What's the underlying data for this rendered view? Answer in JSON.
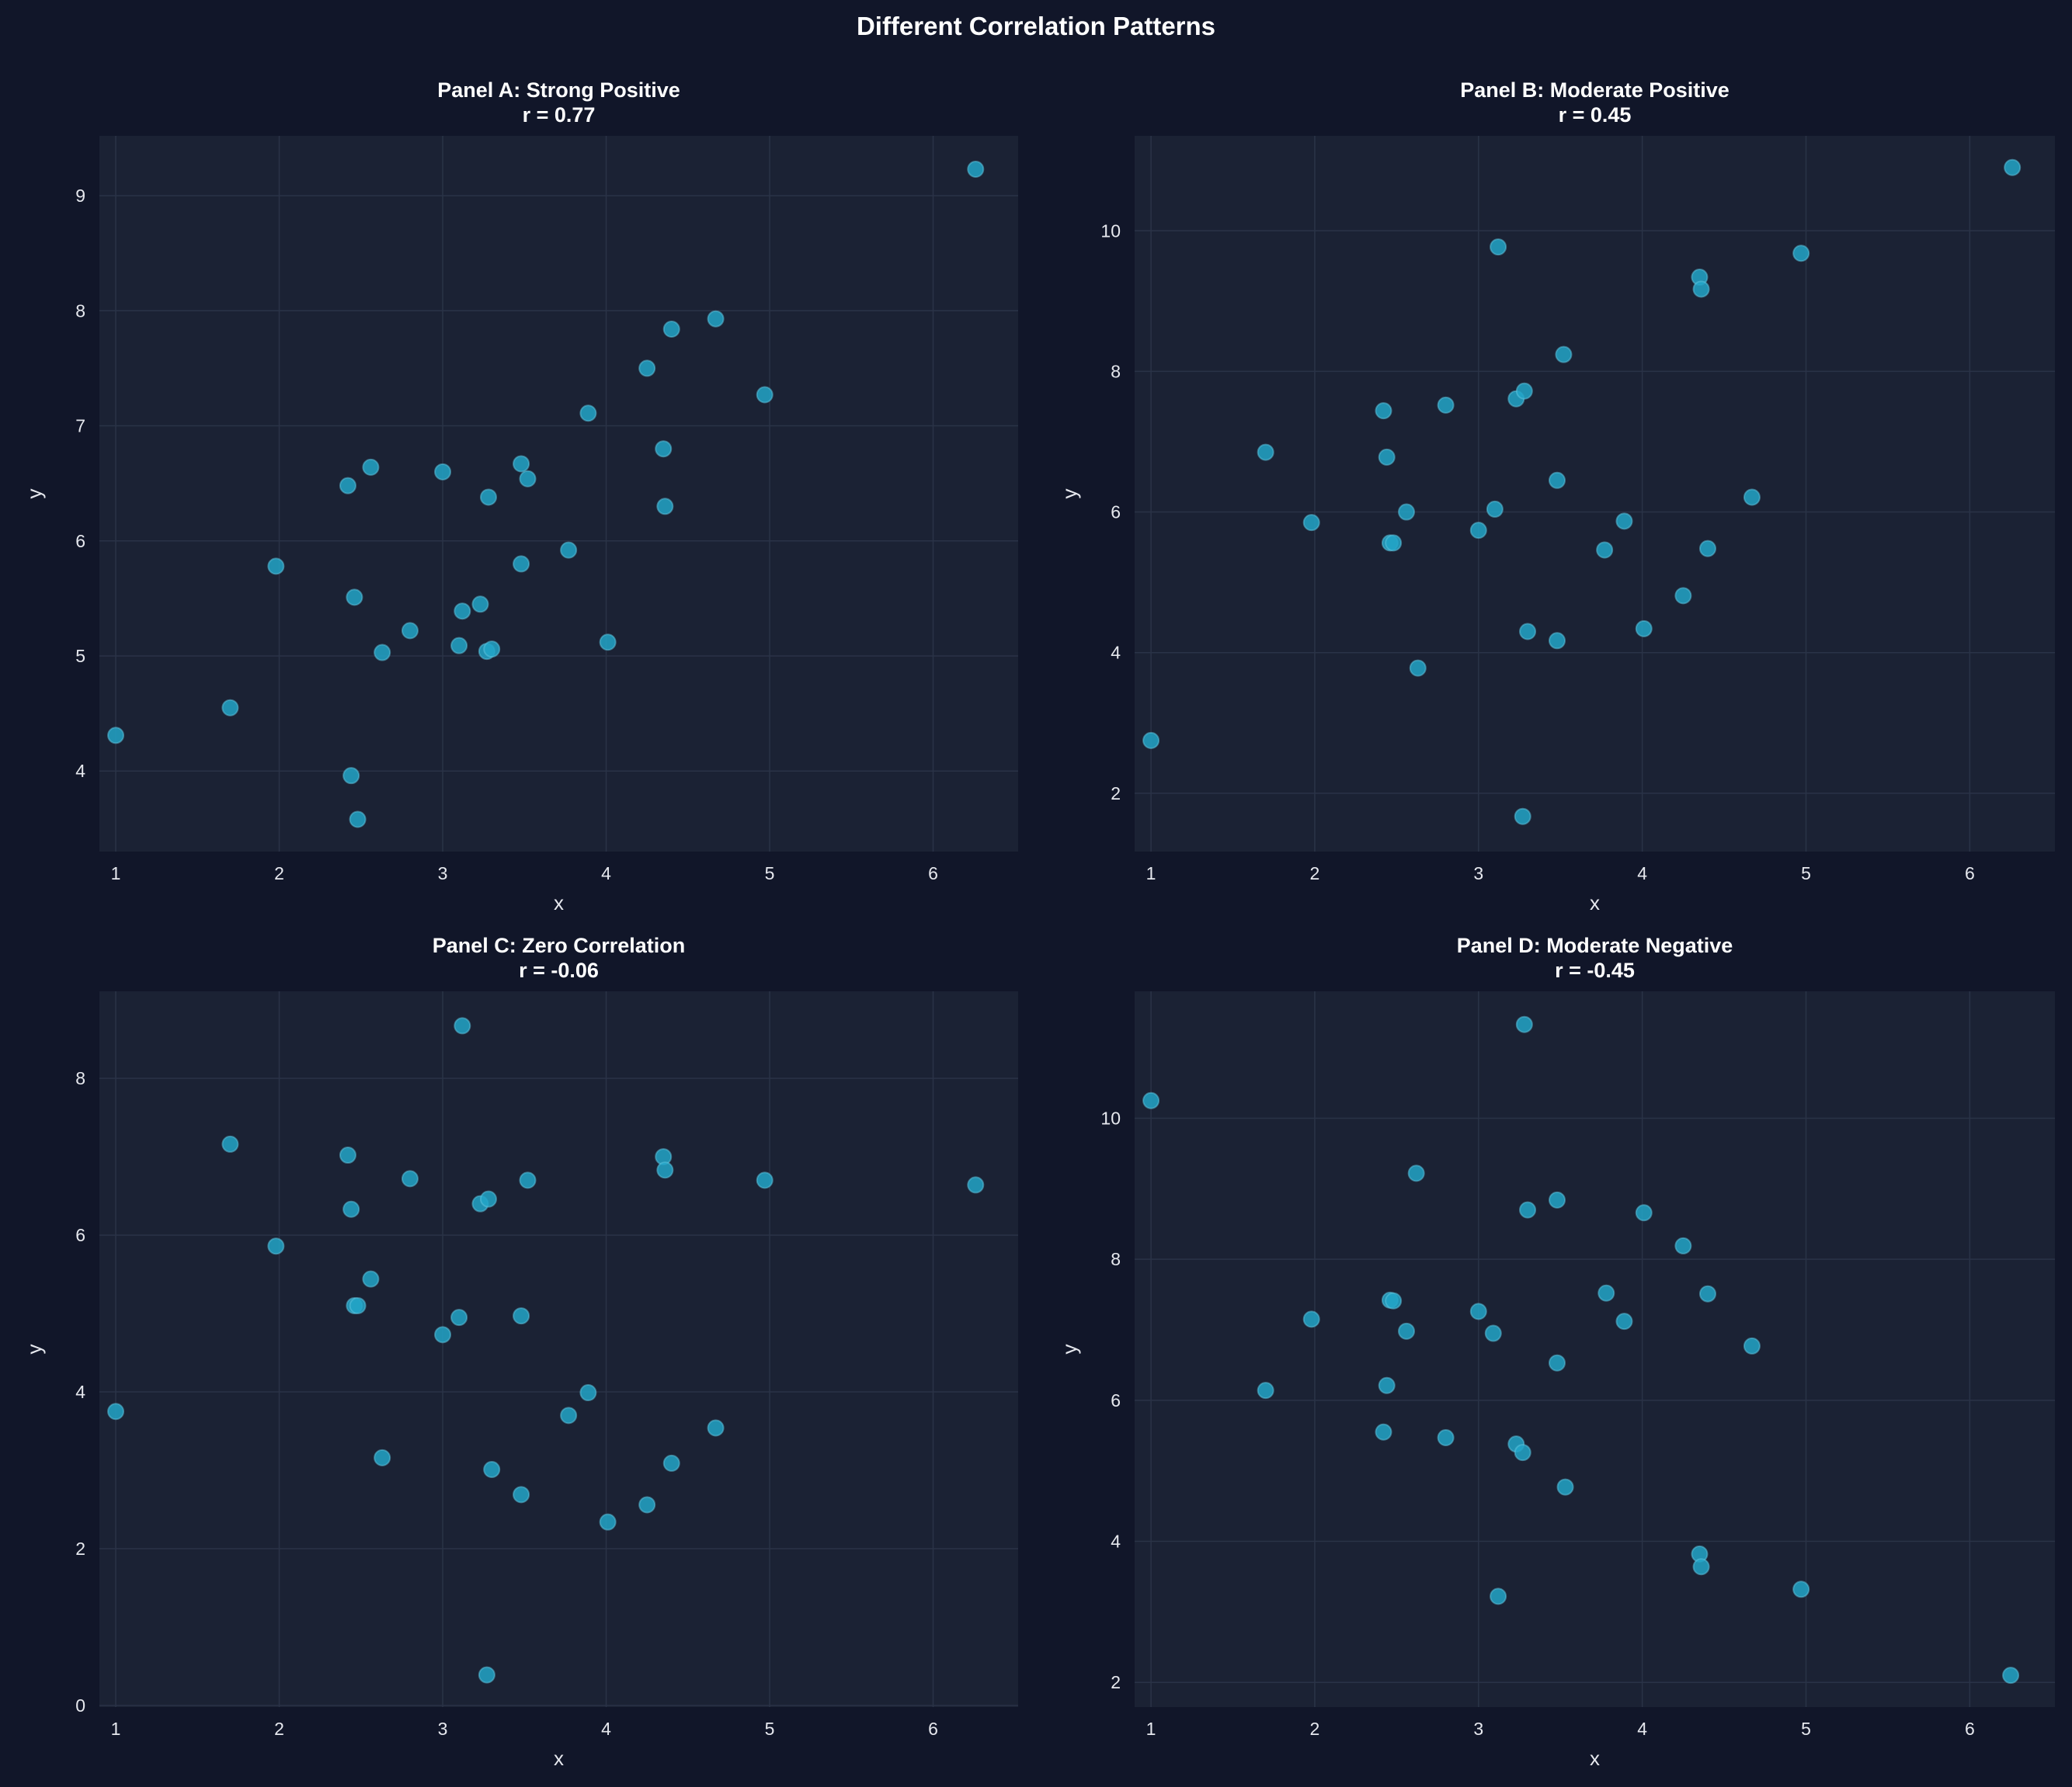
{
  "chart_data": {
    "title": "Different Correlation Patterns",
    "colors": {
      "background": "#111629",
      "axes": "#1b2234",
      "grid": "#2a3347",
      "point": "#22a5c8",
      "point_edge": "#5fc6e0",
      "text": "#e6e8ee"
    },
    "panels": [
      {
        "type": "scatter",
        "title": "Panel A: Strong Positive",
        "subtitle": "r = 0.77",
        "xlabel": "x",
        "ylabel": "y",
        "xlim": [
          0.9,
          6.52
        ],
        "ylim": [
          3.3,
          9.52
        ],
        "xticks": [
          "1",
          "2",
          "3",
          "4",
          "5",
          "6"
        ],
        "yticks": [
          "4",
          "5",
          "6",
          "7",
          "8",
          "9"
        ],
        "grid": true,
        "x": [
          1.0,
          1.7,
          1.98,
          2.42,
          2.44,
          2.46,
          2.48,
          2.56,
          2.63,
          2.8,
          3.0,
          3.1,
          3.12,
          3.23,
          3.28,
          3.27,
          3.3,
          3.48,
          3.48,
          3.52,
          3.77,
          3.89,
          4.01,
          4.25,
          4.35,
          4.36,
          4.4,
          4.67,
          4.97,
          6.26
        ],
        "y": [
          4.31,
          4.55,
          5.78,
          6.48,
          3.96,
          5.51,
          3.58,
          6.64,
          5.03,
          5.22,
          6.6,
          5.09,
          5.39,
          5.45,
          6.38,
          5.04,
          5.06,
          6.67,
          5.8,
          6.54,
          5.92,
          7.11,
          5.12,
          7.5,
          6.8,
          6.3,
          7.84,
          7.93,
          7.27,
          9.23
        ]
      },
      {
        "type": "scatter",
        "title": "Panel B: Moderate Positive",
        "subtitle": "r = 0.45",
        "xlabel": "x",
        "ylabel": "y",
        "xlim": [
          0.9,
          6.52
        ],
        "ylim": [
          1.17,
          11.35
        ],
        "xticks": [
          "1",
          "2",
          "3",
          "4",
          "5",
          "6"
        ],
        "yticks": [
          "2",
          "4",
          "6",
          "8",
          "10"
        ],
        "grid": true,
        "x": [
          1.0,
          1.7,
          1.98,
          2.42,
          2.44,
          2.46,
          2.48,
          2.56,
          2.63,
          2.8,
          3.0,
          3.1,
          3.12,
          3.23,
          3.28,
          3.27,
          3.3,
          3.48,
          3.48,
          3.52,
          3.77,
          3.89,
          4.01,
          4.25,
          4.35,
          4.36,
          4.4,
          4.67,
          4.97,
          6.26
        ],
        "y": [
          2.75,
          6.85,
          5.85,
          7.44,
          6.78,
          5.56,
          5.56,
          6.0,
          3.78,
          7.52,
          5.74,
          6.04,
          9.77,
          7.61,
          7.72,
          1.67,
          4.3,
          6.45,
          4.17,
          8.24,
          5.46,
          5.87,
          4.34,
          4.81,
          9.34,
          9.17,
          5.48,
          6.21,
          9.68,
          10.9
        ]
      },
      {
        "type": "scatter",
        "title": "Panel C: Zero Correlation",
        "subtitle": "r = -0.06",
        "xlabel": "x",
        "ylabel": "y",
        "xlim": [
          0.9,
          6.52
        ],
        "ylim": [
          -0.02,
          9.11
        ],
        "xticks": [
          "1",
          "2",
          "3",
          "4",
          "5",
          "6"
        ],
        "yticks": [
          "0",
          "2",
          "4",
          "6",
          "8"
        ],
        "grid": true,
        "x": [
          1.0,
          1.7,
          1.98,
          2.42,
          2.44,
          2.46,
          2.48,
          2.56,
          2.63,
          2.8,
          3.0,
          3.1,
          3.12,
          3.23,
          3.28,
          3.27,
          3.3,
          3.48,
          3.48,
          3.52,
          3.77,
          3.89,
          4.01,
          4.25,
          4.35,
          4.36,
          4.4,
          4.67,
          4.97,
          6.26
        ],
        "y": [
          3.75,
          7.16,
          5.86,
          7.02,
          6.33,
          5.1,
          5.1,
          5.44,
          3.16,
          6.72,
          4.73,
          4.95,
          8.67,
          6.4,
          6.46,
          0.39,
          3.01,
          4.97,
          2.69,
          6.7,
          3.7,
          3.99,
          2.34,
          2.56,
          7.0,
          6.83,
          3.09,
          3.54,
          6.7,
          6.64
        ]
      },
      {
        "type": "scatter",
        "title": "Panel D: Moderate Negative",
        "subtitle": "r = -0.45",
        "xlabel": "x",
        "ylabel": "y",
        "xlim": [
          0.9,
          6.52
        ],
        "ylim": [
          1.65,
          11.8
        ],
        "xticks": [
          "1",
          "2",
          "3",
          "4",
          "5",
          "6"
        ],
        "yticks": [
          "2",
          "4",
          "6",
          "8",
          "10"
        ],
        "grid": true,
        "x": [
          1.0,
          1.7,
          1.98,
          2.42,
          2.44,
          2.46,
          2.48,
          2.56,
          2.62,
          2.8,
          3.0,
          3.09,
          3.12,
          3.23,
          3.27,
          3.28,
          3.3,
          3.48,
          3.48,
          3.53,
          3.78,
          3.89,
          4.01,
          4.25,
          4.35,
          4.36,
          4.4,
          4.67,
          4.97,
          6.25
        ],
        "y": [
          10.25,
          6.14,
          7.15,
          5.55,
          6.21,
          7.42,
          7.41,
          6.98,
          9.22,
          5.47,
          7.26,
          6.95,
          3.22,
          5.38,
          5.26,
          11.33,
          8.7,
          8.84,
          6.53,
          4.77,
          7.52,
          7.12,
          8.66,
          8.19,
          3.82,
          3.64,
          7.51,
          6.77,
          3.32,
          2.1
        ]
      }
    ]
  }
}
